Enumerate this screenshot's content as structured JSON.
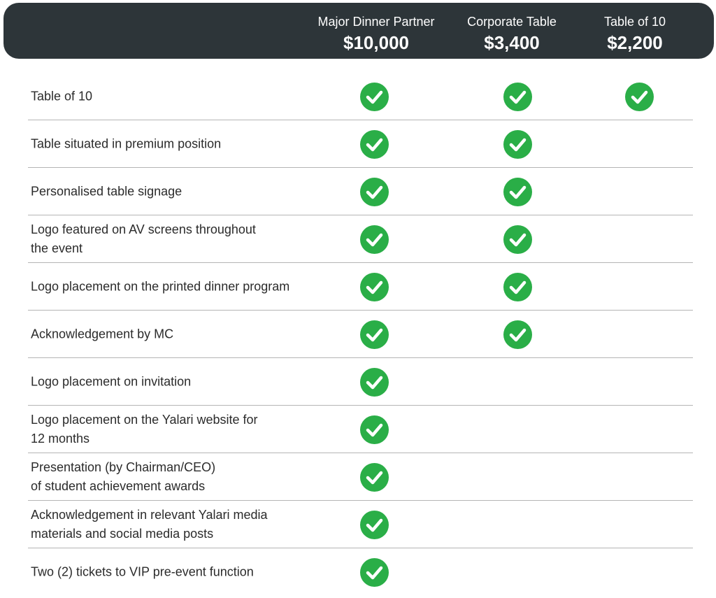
{
  "tiers": [
    {
      "name": "Major Dinner Partner",
      "price": "$10,000"
    },
    {
      "name": "Corporate Table",
      "price": "$3,400"
    },
    {
      "name": "Table of 10",
      "price": "$2,200"
    }
  ],
  "rows": [
    {
      "label": "Table of 10",
      "included": [
        true,
        true,
        true
      ]
    },
    {
      "label": "Table situated in premium position",
      "included": [
        true,
        true,
        false
      ]
    },
    {
      "label": "Personalised table signage",
      "included": [
        true,
        true,
        false
      ]
    },
    {
      "label": "Logo featured on AV screens throughout\nthe event",
      "included": [
        true,
        true,
        false
      ]
    },
    {
      "label": "Logo placement on the printed dinner program",
      "included": [
        true,
        true,
        false
      ]
    },
    {
      "label": "Acknowledgement by MC",
      "included": [
        true,
        true,
        false
      ]
    },
    {
      "label": "Logo placement on invitation",
      "included": [
        true,
        false,
        false
      ]
    },
    {
      "label": "Logo placement on the Yalari website for\n12 months",
      "included": [
        true,
        false,
        false
      ]
    },
    {
      "label": "Presentation (by Chairman/CEO)\nof student achievement awards",
      "included": [
        true,
        false,
        false
      ]
    },
    {
      "label": "Acknowledgement in relevant Yalari media\nmaterials and social media posts",
      "included": [
        true,
        false,
        false
      ]
    },
    {
      "label": "Two (2) tickets to VIP pre-event function",
      "included": [
        true,
        false,
        false
      ]
    }
  ],
  "colors": {
    "header_bg": "#2d3539",
    "check": "#2aae47"
  },
  "icons": {
    "included": "check-circle-icon"
  }
}
